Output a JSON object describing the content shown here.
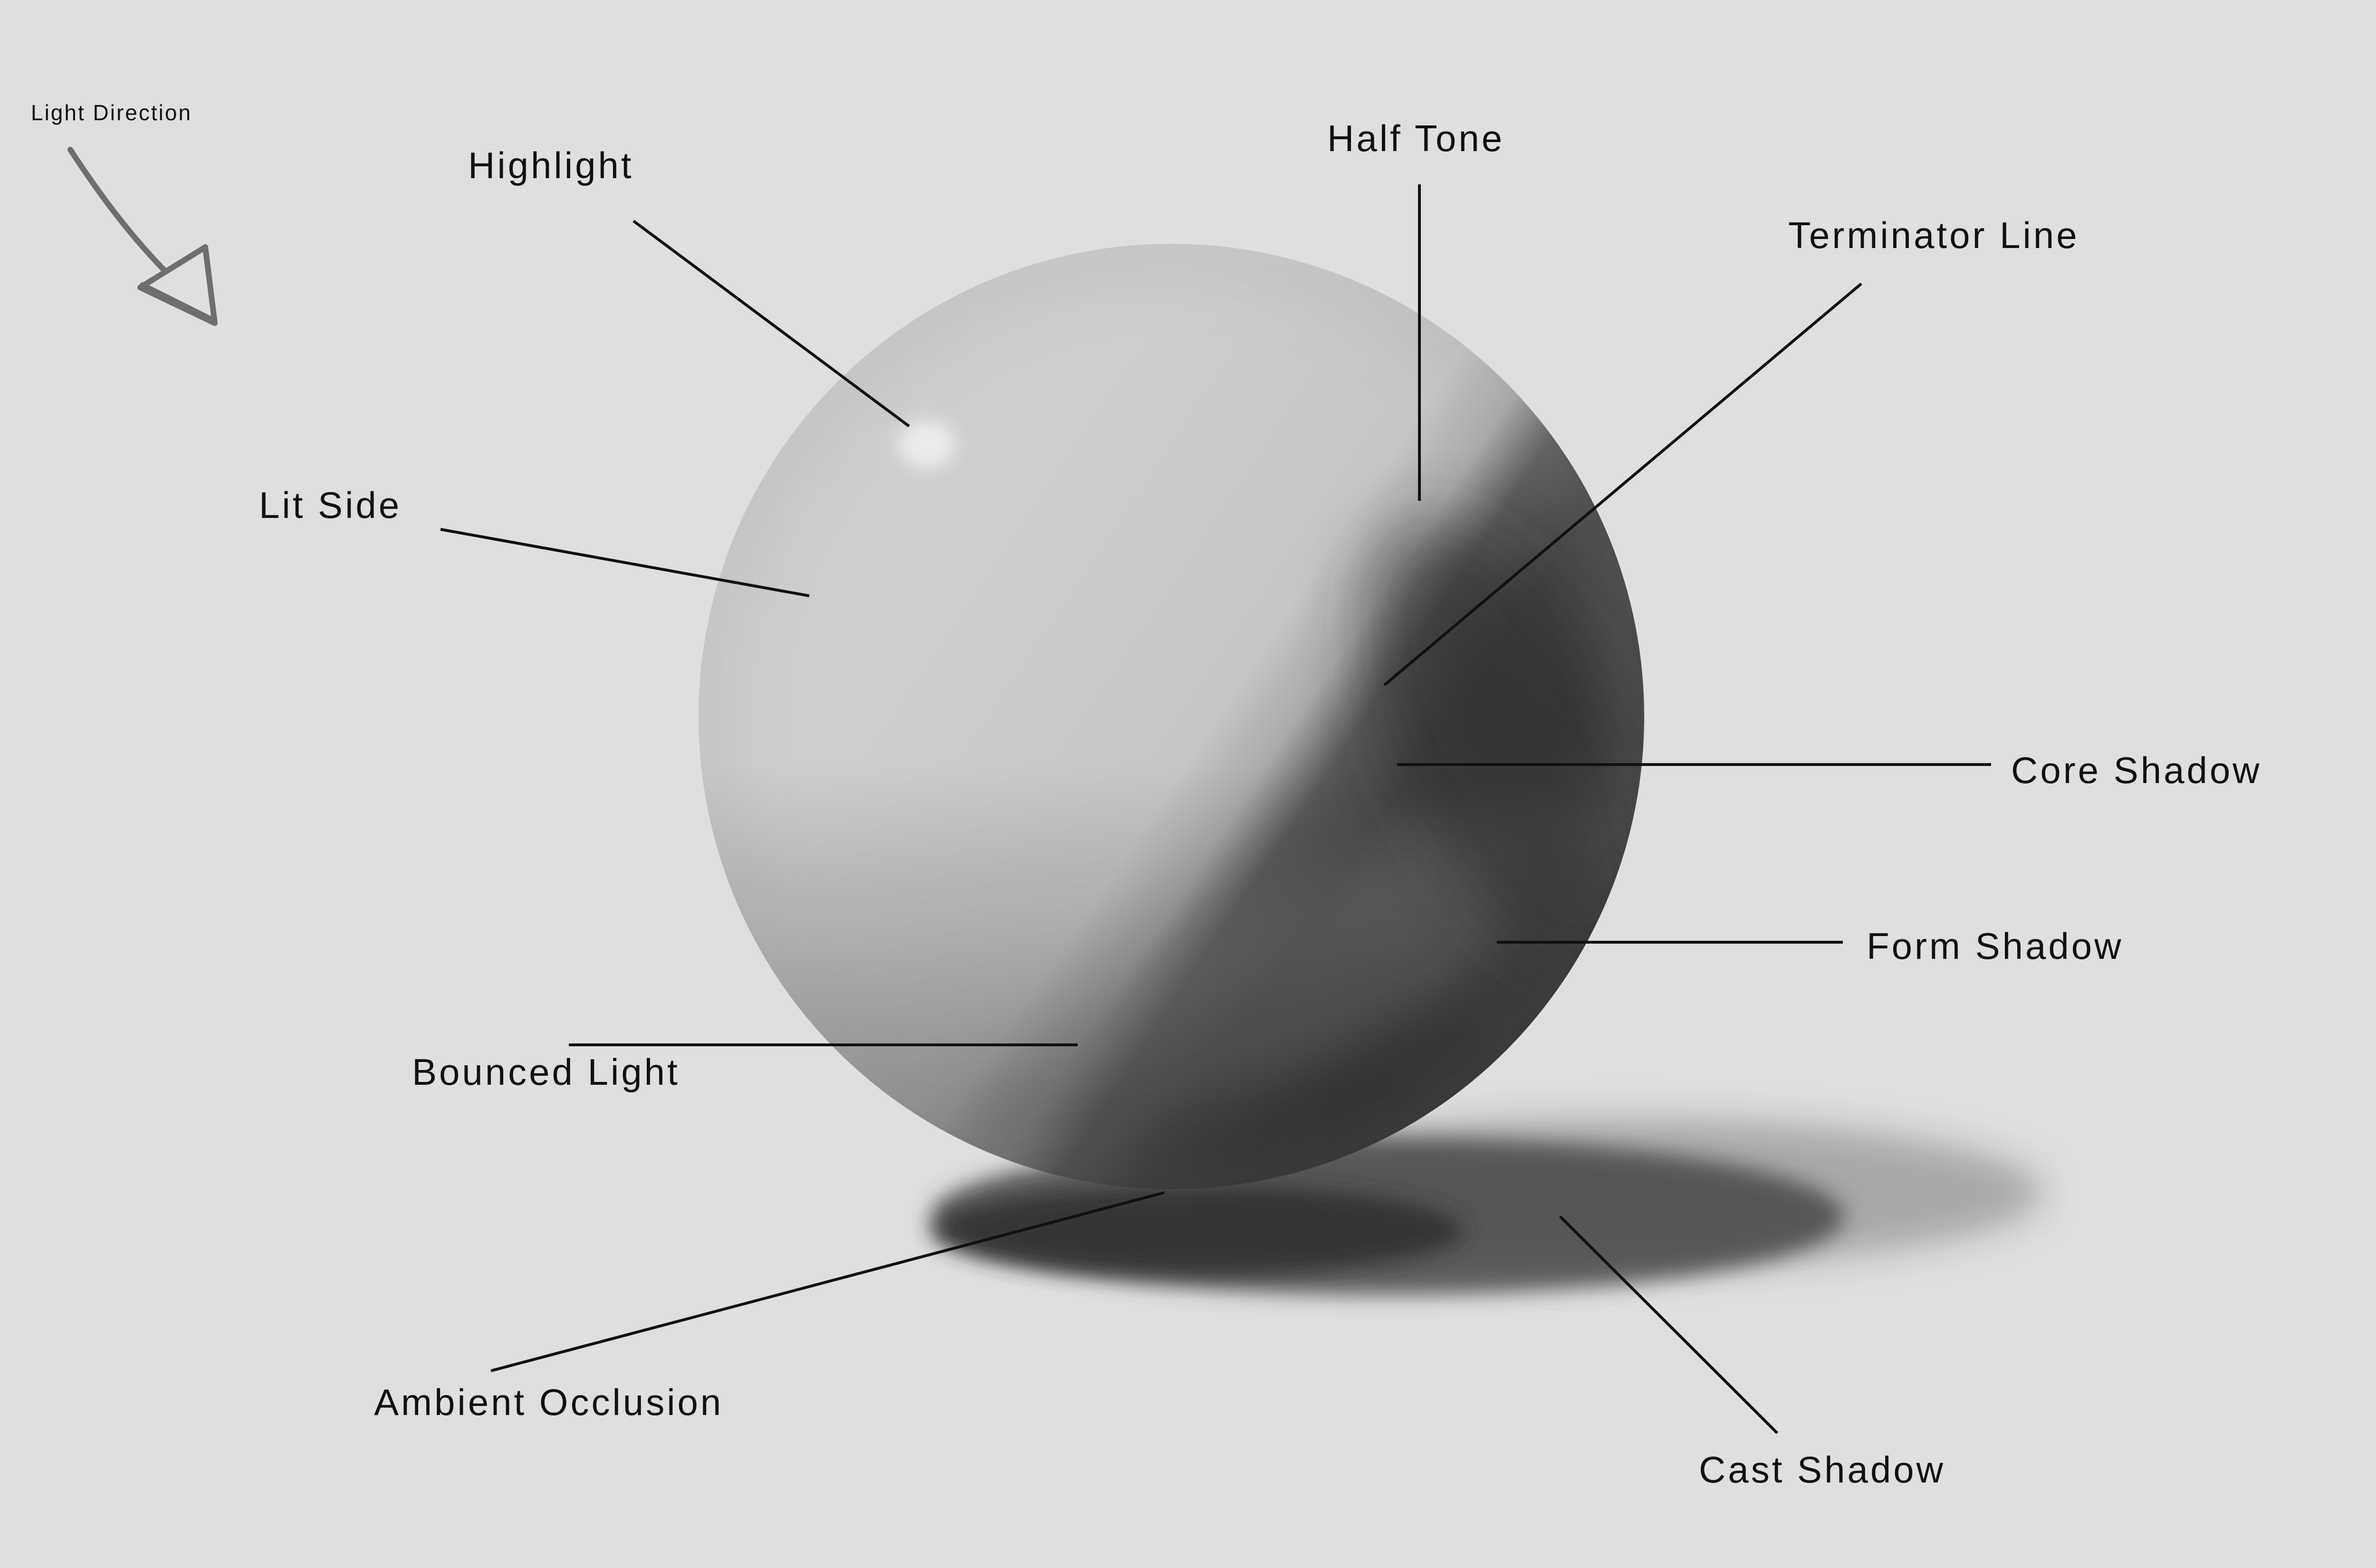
{
  "colors": {
    "background": "#dfdfdf",
    "text": "#111111",
    "sphere_light": "#c9c9c9",
    "sphere_dark": "#333333",
    "arrow": "#6e6e6e"
  },
  "icons": {
    "light_direction": "arrow-down-right-icon"
  },
  "labels": {
    "light_direction": "Light Direction",
    "highlight": "Highlight",
    "half_tone": "Half Tone",
    "terminator_line": "Terminator Line",
    "lit_side": "Lit Side",
    "core_shadow": "Core Shadow",
    "form_shadow": "Form Shadow",
    "bounced_light": "Bounced Light",
    "ambient_occlusion": "Ambient Occlusion",
    "cast_shadow": "Cast Shadow"
  }
}
